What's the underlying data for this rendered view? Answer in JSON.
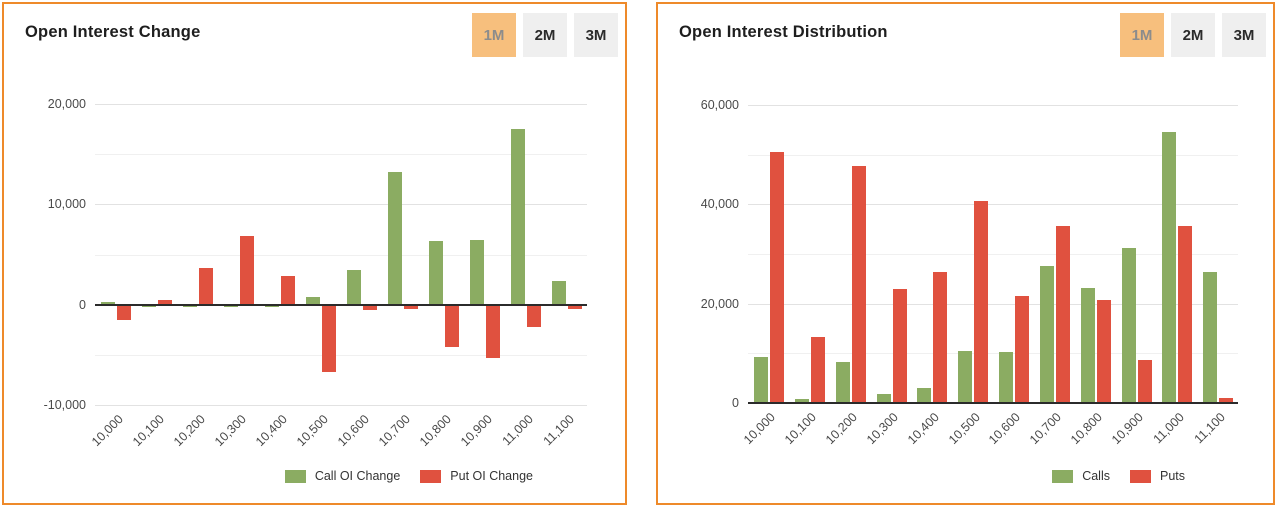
{
  "panels": [
    {
      "title": "Open Interest Change",
      "buttons": [
        {
          "label": "1M",
          "active": true
        },
        {
          "label": "2M",
          "active": false
        },
        {
          "label": "3M",
          "active": false
        }
      ],
      "legend": [
        {
          "label": "Call OI Change"
        },
        {
          "label": "Put OI Change"
        }
      ]
    },
    {
      "title": "Open Interest Distribution",
      "buttons": [
        {
          "label": "1M",
          "active": true
        },
        {
          "label": "2M",
          "active": false
        },
        {
          "label": "3M",
          "active": false
        }
      ],
      "legend": [
        {
          "label": "Calls"
        },
        {
          "label": "Puts"
        }
      ]
    }
  ],
  "colors": {
    "panel_border": "#EE8A2A",
    "call_green": "#8BAC62",
    "put_red": "#E0513F",
    "active_button_bg": "#F7BF7D",
    "active_button_text": "#8C8C8C",
    "inactive_button_bg": "#EFEFEF",
    "zero_axis_line": "#2B2B2B",
    "gridline_major": "#E2E2E2",
    "gridline_minor": "#F0F0F0"
  },
  "chart_data": [
    {
      "type": "bar",
      "title": "Open Interest Change",
      "categories": [
        "10,000",
        "10,100",
        "10,200",
        "10,300",
        "10,400",
        "10,500",
        "10,600",
        "10,700",
        "10,800",
        "10,900",
        "11,000",
        "11,100"
      ],
      "series": [
        {
          "name": "Call OI Change",
          "color": "#8BAC62",
          "values": [
            250,
            -150,
            -150,
            -150,
            -150,
            800,
            3500,
            13200,
            6300,
            6400,
            17500,
            2400
          ]
        },
        {
          "name": "Put OI Change",
          "color": "#E0513F",
          "values": [
            -1400,
            500,
            3700,
            6800,
            2900,
            -6650,
            -450,
            -300,
            -4150,
            -5250,
            -2150,
            -350
          ]
        }
      ],
      "xlabel": "",
      "ylabel": "",
      "ylim": [
        -10000,
        20000
      ],
      "ytick_minor_step": 5000,
      "ytick_label_step": 10000,
      "grid": true,
      "legend_position": "bottom-right"
    },
    {
      "type": "bar",
      "title": "Open Interest Distribution",
      "categories": [
        "10,000",
        "10,100",
        "10,200",
        "10,300",
        "10,400",
        "10,500",
        "10,600",
        "10,700",
        "10,800",
        "10,900",
        "11,000",
        "11,100"
      ],
      "series": [
        {
          "name": "Calls",
          "color": "#8BAC62",
          "values": [
            9200,
            800,
            8300,
            1800,
            3000,
            10500,
            10300,
            27600,
            23200,
            31300,
            54500,
            26400
          ]
        },
        {
          "name": "Puts",
          "color": "#E0513F",
          "values": [
            50500,
            13300,
            47800,
            22900,
            26400,
            40700,
            21600,
            35600,
            20700,
            8700,
            35600,
            1100
          ]
        }
      ],
      "xlabel": "",
      "ylabel": "",
      "ylim": [
        0,
        60000
      ],
      "ytick_minor_step": 10000,
      "ytick_label_step": 20000,
      "grid": true,
      "legend_position": "bottom-right"
    }
  ]
}
